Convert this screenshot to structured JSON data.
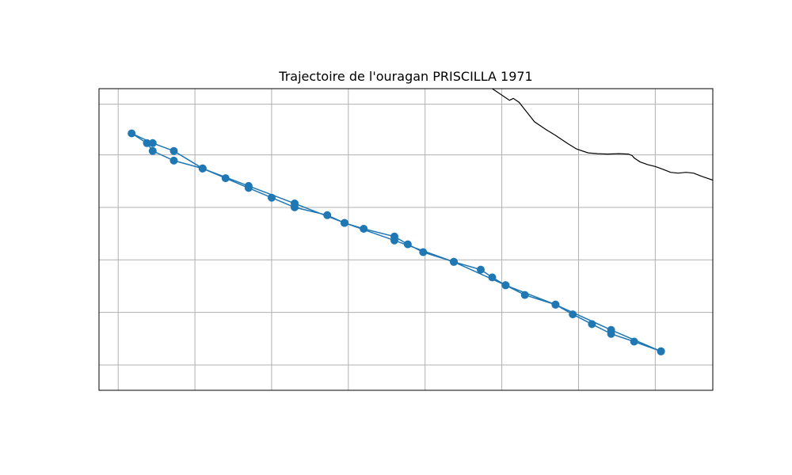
{
  "chart_data": {
    "type": "line",
    "title": "Trajectoire de l'ouragan PRISCILLA 1971",
    "xlabel": "",
    "ylabel": "",
    "grid": true,
    "axis_tick_labels_shown": false,
    "xlim": [
      -117.25,
      -101.25
    ],
    "ylim": [
      9.75,
      17.5
    ],
    "gridlines": {
      "lon": [
        -116.75,
        -114.75,
        -112.75,
        -110.75,
        -108.75,
        -106.75,
        -104.75,
        -102.75
      ],
      "lat": [
        10.4,
        11.75,
        13.1,
        14.45,
        15.8,
        17.1
      ]
    },
    "series": [
      {
        "x": [
          -102.6,
          -103.3,
          -103.9,
          -104.4,
          -104.9,
          -105.35,
          -106.15,
          -106.65,
          -107.0,
          -107.3,
          -108.0,
          -108.8,
          -109.2,
          -109.55,
          -110.35,
          -110.85,
          -111.3,
          -112.15,
          -112.75,
          -113.35,
          -113.95,
          -114.55,
          -115.3,
          -115.85,
          -116.0,
          -116.4,
          -115.85,
          -115.3,
          -114.55,
          -113.35,
          -112.15,
          -110.85,
          -109.55,
          -108.0,
          -106.65,
          -105.35,
          -103.9,
          -102.6
        ],
        "y": [
          10.75,
          11.0,
          11.2,
          11.45,
          11.7,
          11.95,
          12.2,
          12.45,
          12.65,
          12.85,
          13.05,
          13.3,
          13.5,
          13.7,
          13.9,
          14.05,
          14.25,
          14.45,
          14.7,
          14.95,
          15.2,
          15.45,
          15.65,
          15.9,
          16.1,
          16.35,
          16.1,
          15.9,
          15.45,
          15.0,
          14.55,
          14.05,
          13.6,
          13.05,
          12.45,
          11.95,
          11.3,
          10.75
        ]
      }
    ],
    "colors": {
      "track": "#1f77b4",
      "grid": "#b0b0b0",
      "coastline": "#000000",
      "frame": "#000000"
    },
    "coastline": {
      "lon": [
        -107.0,
        -106.85,
        -106.7,
        -106.55,
        -106.45,
        -106.3,
        -106.1,
        -105.9,
        -105.6,
        -105.35,
        -105.05,
        -104.8,
        -104.5,
        -104.25,
        -104.0,
        -103.7,
        -103.45,
        -103.35,
        -103.3,
        -103.15,
        -102.95,
        -102.75,
        -102.55,
        -102.35,
        -102.15,
        -101.95,
        -101.75,
        -101.55,
        -101.25
      ],
      "lat": [
        17.5,
        17.4,
        17.3,
        17.2,
        17.25,
        17.15,
        16.9,
        16.65,
        16.45,
        16.3,
        16.1,
        15.95,
        15.85,
        15.83,
        15.82,
        15.83,
        15.82,
        15.78,
        15.72,
        15.62,
        15.55,
        15.5,
        15.43,
        15.35,
        15.33,
        15.35,
        15.33,
        15.25,
        15.15
      ]
    }
  }
}
